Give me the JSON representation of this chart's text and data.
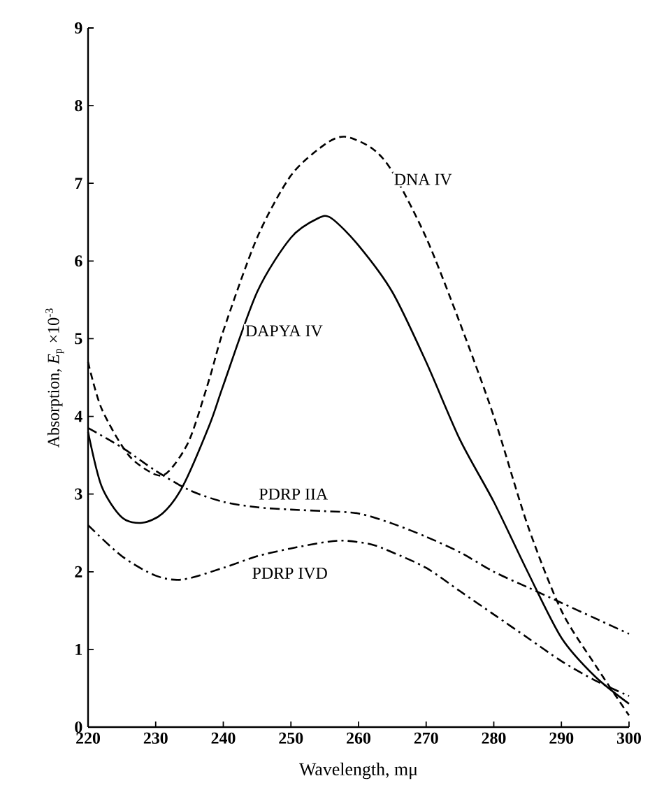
{
  "chart_data": {
    "type": "line",
    "xlabel": "Wavelength, mμ",
    "ylabel": "Absorption, *E*$_{p}$ ×10$^{-3}$",
    "xlim": [
      220,
      300
    ],
    "ylim": [
      0,
      9
    ],
    "xticks": [
      220,
      230,
      240,
      250,
      260,
      270,
      280,
      290,
      300
    ],
    "yticks": [
      0,
      1,
      2,
      3,
      4,
      5,
      6,
      7,
      8,
      9
    ],
    "grid": false,
    "legend": false,
    "marker": "none",
    "series": [
      {
        "name": "DNA IV",
        "color": "#000000",
        "line_style": "dashed",
        "x": [
          220,
          222,
          226,
          230,
          232,
          235,
          238,
          240,
          245,
          250,
          255,
          258,
          262,
          265,
          270,
          275,
          280,
          285,
          290,
          295,
          300
        ],
        "values": [
          4.7,
          4.1,
          3.5,
          3.25,
          3.3,
          3.7,
          4.5,
          5.1,
          6.3,
          7.1,
          7.5,
          7.6,
          7.45,
          7.15,
          6.3,
          5.2,
          4.0,
          2.6,
          1.5,
          0.8,
          0.15
        ]
      },
      {
        "name": "DAPYA IV",
        "color": "#000000",
        "line_style": "solid",
        "x": [
          220,
          222,
          225,
          228,
          231,
          234,
          238,
          240,
          245,
          250,
          254,
          256,
          260,
          265,
          270,
          275,
          280,
          285,
          290,
          295,
          300
        ],
        "values": [
          3.8,
          3.1,
          2.7,
          2.63,
          2.75,
          3.1,
          3.9,
          4.4,
          5.6,
          6.3,
          6.55,
          6.55,
          6.2,
          5.6,
          4.7,
          3.7,
          2.9,
          2.0,
          1.15,
          0.65,
          0.3
        ]
      },
      {
        "name": "PDRP IIA",
        "color": "#000000",
        "line_style": "dashdot",
        "x": [
          220,
          225,
          230,
          235,
          240,
          245,
          250,
          255,
          260,
          265,
          270,
          275,
          280,
          285,
          290,
          295,
          300
        ],
        "values": [
          3.85,
          3.6,
          3.3,
          3.05,
          2.9,
          2.83,
          2.8,
          2.78,
          2.75,
          2.62,
          2.45,
          2.25,
          2.0,
          1.8,
          1.6,
          1.4,
          1.2
        ]
      },
      {
        "name": "PDRP IVD",
        "color": "#000000",
        "line_style": "dashdot",
        "x": [
          220,
          225,
          230,
          234,
          240,
          245,
          250,
          255,
          258,
          262,
          265,
          270,
          275,
          280,
          285,
          290,
          295,
          300
        ],
        "values": [
          2.6,
          2.2,
          1.95,
          1.9,
          2.05,
          2.2,
          2.3,
          2.38,
          2.4,
          2.35,
          2.25,
          2.05,
          1.75,
          1.45,
          1.15,
          0.85,
          0.6,
          0.4
        ]
      }
    ]
  }
}
